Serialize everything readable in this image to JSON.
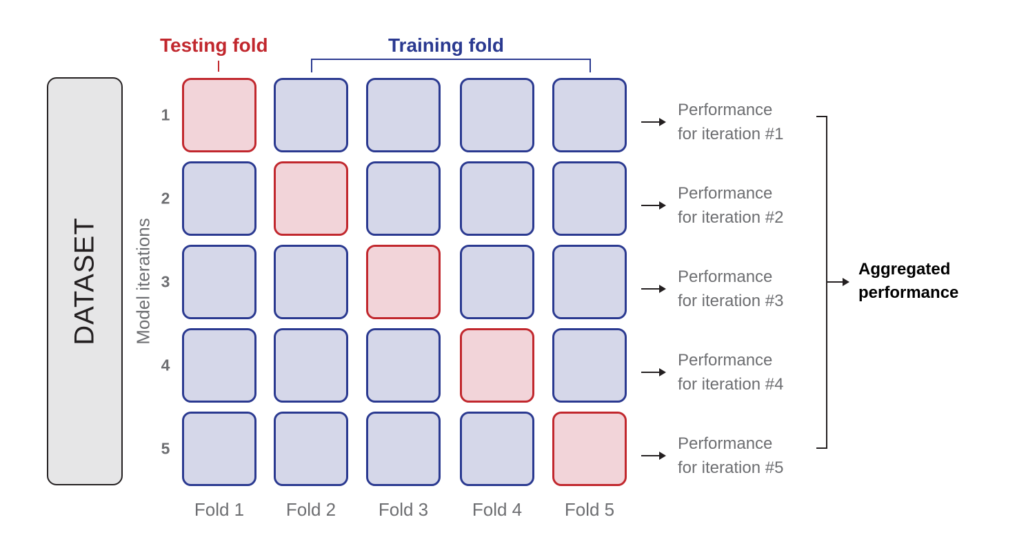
{
  "dataset_label": "DATASET",
  "axis_label": "Model iterations",
  "headers": {
    "testing_fold": "Testing fold",
    "training_fold": "Training fold"
  },
  "colors": {
    "testing": "#c1272d",
    "testing_fill": "#f2d4d9",
    "training": "#2a3990",
    "training_fill": "#d5d7e9"
  },
  "iterations": [
    {
      "number": "1",
      "test_fold_index": 0,
      "performance_line1": "Performance",
      "performance_line2": "for iteration #1"
    },
    {
      "number": "2",
      "test_fold_index": 1,
      "performance_line1": "Performance",
      "performance_line2": "for iteration #2"
    },
    {
      "number": "3",
      "test_fold_index": 2,
      "performance_line1": "Performance",
      "performance_line2": "for iteration #3"
    },
    {
      "number": "4",
      "test_fold_index": 3,
      "performance_line1": "Performance",
      "performance_line2": "for iteration #4"
    },
    {
      "number": "5",
      "test_fold_index": 4,
      "performance_line1": "Performance",
      "performance_line2": "for iteration #5"
    }
  ],
  "folds": [
    "Fold 1",
    "Fold 2",
    "Fold 3",
    "Fold 4",
    "Fold 5"
  ],
  "aggregated": {
    "line1": "Aggregated",
    "line2": "performance"
  }
}
